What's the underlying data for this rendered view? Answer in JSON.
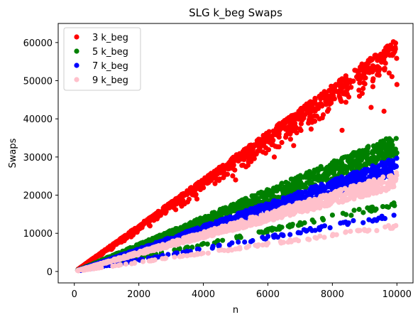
{
  "chart_data": {
    "type": "scatter",
    "title": "SLG k_beg Swaps",
    "xlabel": "n",
    "ylabel": "Swaps",
    "xlim": [
      -500,
      10500
    ],
    "ylim": [
      -3000,
      65000
    ],
    "xticks": [
      0,
      2000,
      4000,
      6000,
      8000,
      10000
    ],
    "yticks": [
      0,
      10000,
      20000,
      30000,
      40000,
      50000,
      60000
    ],
    "grid": false,
    "legend_position": "top-left",
    "series": [
      {
        "name": "3 k_beg",
        "color": "#ff0000",
        "trend": {
          "x": [
            100,
            10000
          ],
          "y": [
            500,
            61000
          ]
        },
        "spread_range": [
          [
            100,
            10000
          ],
          [
            400,
            50000
          ]
        ],
        "outliers": {
          "x": [
            3200,
            3800,
            4300,
            5000,
            5600,
            6200,
            6800,
            7600,
            8300,
            9200,
            9600,
            10000
          ],
          "y": [
            9000,
            19000,
            11000,
            24000,
            14000,
            30000,
            33000,
            40000,
            37000,
            43000,
            42000,
            49000
          ]
        }
      },
      {
        "name": "5 k_beg",
        "color": "#008000",
        "trend": {
          "x": [
            100,
            10000
          ],
          "y": [
            350,
            36000
          ]
        },
        "lower_band": {
          "x": [
            100,
            10000
          ],
          "y": [
            200,
            18000
          ]
        }
      },
      {
        "name": "7 k_beg",
        "color": "#0000ff",
        "trend": {
          "x": [
            100,
            10000
          ],
          "y": [
            300,
            30000
          ]
        },
        "lower_band": {
          "x": [
            100,
            10000
          ],
          "y": [
            150,
            15000
          ]
        }
      },
      {
        "name": "9 k_beg",
        "color": "#ffc0cb",
        "trend": {
          "x": [
            100,
            10000
          ],
          "y": [
            260,
            26000
          ]
        },
        "lower_band": {
          "x": [
            100,
            10000
          ],
          "y": [
            130,
            12000
          ]
        }
      }
    ]
  }
}
